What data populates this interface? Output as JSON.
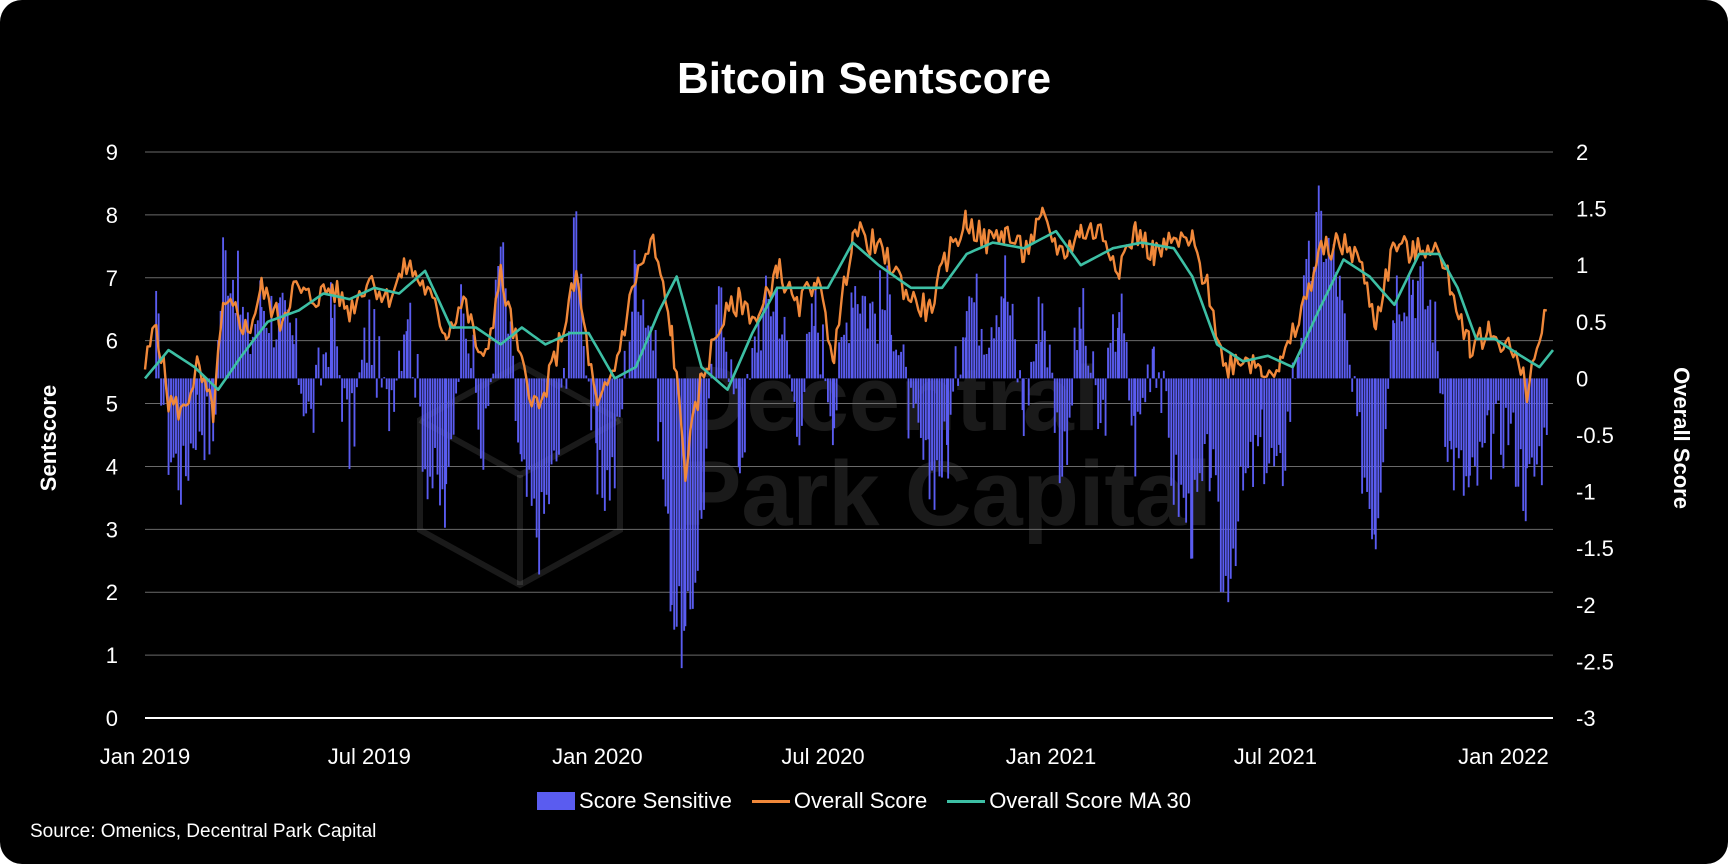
{
  "title": "Bitcoin Sentscore",
  "source": "Source: Omenics, Decentral Park Capital",
  "watermark": [
    "Decentral",
    "Park Capital"
  ],
  "colors": {
    "background": "#000000",
    "bars": "#5a5cf0",
    "overall": "#f0883a",
    "ma30": "#3dbfa4",
    "grid": "#6a6a6a",
    "text": "#ffffff"
  },
  "chart_data": {
    "type": "bar+line",
    "title": "Bitcoin Sentscore",
    "left_axis": {
      "label": "Sentscore",
      "range": [
        0,
        9
      ],
      "ticks": [
        "0",
        "1",
        "2",
        "3",
        "4",
        "5",
        "6",
        "7",
        "8",
        "9"
      ]
    },
    "right_axis": {
      "label": "Overall Score",
      "range": [
        -3,
        2
      ],
      "ticks": [
        "-3",
        "-2.5",
        "-2",
        "-1.5",
        "-1",
        "-0.5",
        "0",
        "0.5",
        "1",
        "1.5",
        "2"
      ]
    },
    "x_axis": {
      "range": [
        "2019-01-01",
        "2022-02-10"
      ],
      "ticks": [
        {
          "date": "2019-01-01",
          "label": "Jan 2019"
        },
        {
          "date": "2019-07-01",
          "label": "Jul 2019"
        },
        {
          "date": "2020-01-01",
          "label": "Jan 2020"
        },
        {
          "date": "2020-07-01",
          "label": "Jul 2020"
        },
        {
          "date": "2021-01-01",
          "label": "Jan 2021"
        },
        {
          "date": "2021-07-01",
          "label": "Jul 2021"
        },
        {
          "date": "2022-01-01",
          "label": "Jan 2022"
        }
      ]
    },
    "grid": true,
    "legend_position": "bottom",
    "bar_baseline_right_axis": 0,
    "series": [
      {
        "name": "Score Sensitive",
        "type": "bar",
        "axis": "right",
        "note_unit": "Overall Score axis",
        "points": [
          [
            "2019-01-10",
            0.5
          ],
          [
            "2019-01-20",
            -0.6
          ],
          [
            "2019-02-01",
            -0.9
          ],
          [
            "2019-02-12",
            -0.3
          ],
          [
            "2019-02-25",
            -0.5
          ],
          [
            "2019-03-05",
            1.1
          ],
          [
            "2019-03-15",
            0.9
          ],
          [
            "2019-03-25",
            0.3
          ],
          [
            "2019-04-05",
            0.7
          ],
          [
            "2019-04-20",
            0.5
          ],
          [
            "2019-05-01",
            0.3
          ],
          [
            "2019-05-15",
            -0.4
          ],
          [
            "2019-06-01",
            0.6
          ],
          [
            "2019-06-15",
            -0.6
          ],
          [
            "2019-07-01",
            0.5
          ],
          [
            "2019-07-15",
            -0.3
          ],
          [
            "2019-08-01",
            0.7
          ],
          [
            "2019-08-15",
            -0.7
          ],
          [
            "2019-09-01",
            -1.2
          ],
          [
            "2019-09-15",
            0.9
          ],
          [
            "2019-10-01",
            -0.8
          ],
          [
            "2019-10-15",
            1.2
          ],
          [
            "2019-11-01",
            -0.9
          ],
          [
            "2019-11-15",
            -1.4
          ],
          [
            "2019-12-01",
            -0.6
          ],
          [
            "2019-12-15",
            1.4
          ],
          [
            "2020-01-01",
            -1.0
          ],
          [
            "2020-01-15",
            -0.8
          ],
          [
            "2020-02-01",
            1.0
          ],
          [
            "2020-02-15",
            0.4
          ],
          [
            "2020-03-01",
            -1.9
          ],
          [
            "2020-03-12",
            -2.4
          ],
          [
            "2020-03-25",
            -1.2
          ],
          [
            "2020-04-10",
            0.9
          ],
          [
            "2020-04-25",
            -0.7
          ],
          [
            "2020-05-10",
            0.5
          ],
          [
            "2020-05-25",
            0.8
          ],
          [
            "2020-06-10",
            -0.4
          ],
          [
            "2020-06-25",
            0.6
          ],
          [
            "2020-07-10",
            -0.3
          ],
          [
            "2020-07-25",
            0.9
          ],
          [
            "2020-08-10",
            0.6
          ],
          [
            "2020-08-25",
            0.7
          ],
          [
            "2020-09-10",
            -0.4
          ],
          [
            "2020-09-25",
            -0.9
          ],
          [
            "2020-10-10",
            -0.6
          ],
          [
            "2020-10-25",
            0.8
          ],
          [
            "2020-11-10",
            0.5
          ],
          [
            "2020-11-25",
            0.9
          ],
          [
            "2020-12-10",
            -0.3
          ],
          [
            "2020-12-25",
            0.7
          ],
          [
            "2021-01-10",
            -0.8
          ],
          [
            "2021-01-25",
            0.6
          ],
          [
            "2021-02-10",
            -0.5
          ],
          [
            "2021-02-25",
            0.7
          ],
          [
            "2021-03-10",
            -0.6
          ],
          [
            "2021-03-25",
            0.4
          ],
          [
            "2021-04-10",
            -0.9
          ],
          [
            "2021-04-25",
            -1.3
          ],
          [
            "2021-05-10",
            -0.7
          ],
          [
            "2021-05-20",
            -1.9
          ],
          [
            "2021-06-05",
            -1.0
          ],
          [
            "2021-06-20",
            -0.6
          ],
          [
            "2021-07-05",
            -0.9
          ],
          [
            "2021-07-20",
            0.4
          ],
          [
            "2021-08-05",
            1.4
          ],
          [
            "2021-08-20",
            0.9
          ],
          [
            "2021-09-05",
            -0.5
          ],
          [
            "2021-09-20",
            -1.3
          ],
          [
            "2021-10-05",
            0.8
          ],
          [
            "2021-10-20",
            0.9
          ],
          [
            "2021-11-05",
            0.6
          ],
          [
            "2021-11-20",
            -0.7
          ],
          [
            "2021-12-05",
            -1.0
          ],
          [
            "2021-12-20",
            -0.6
          ],
          [
            "2022-01-05",
            -0.4
          ],
          [
            "2022-01-20",
            -1.0
          ],
          [
            "2022-02-05",
            -0.5
          ]
        ]
      },
      {
        "name": "Overall Score",
        "type": "line",
        "axis": "right",
        "points": [
          [
            "2019-01-01",
            0.1
          ],
          [
            "2019-01-10",
            0.5
          ],
          [
            "2019-01-20",
            -0.2
          ],
          [
            "2019-02-01",
            -0.3
          ],
          [
            "2019-02-12",
            0.1
          ],
          [
            "2019-02-25",
            -0.3
          ],
          [
            "2019-03-05",
            0.6
          ],
          [
            "2019-03-15",
            0.6
          ],
          [
            "2019-03-25",
            0.4
          ],
          [
            "2019-04-05",
            0.8
          ],
          [
            "2019-04-20",
            0.5
          ],
          [
            "2019-05-01",
            0.8
          ],
          [
            "2019-05-15",
            0.7
          ],
          [
            "2019-06-01",
            0.8
          ],
          [
            "2019-06-15",
            0.6
          ],
          [
            "2019-07-01",
            0.9
          ],
          [
            "2019-07-15",
            0.7
          ],
          [
            "2019-08-01",
            1.0
          ],
          [
            "2019-08-15",
            0.8
          ],
          [
            "2019-09-01",
            0.4
          ],
          [
            "2019-09-15",
            0.7
          ],
          [
            "2019-10-01",
            0.1
          ],
          [
            "2019-10-15",
            0.9
          ],
          [
            "2019-11-01",
            0.1
          ],
          [
            "2019-11-15",
            -0.3
          ],
          [
            "2019-12-01",
            0.3
          ],
          [
            "2019-12-15",
            0.9
          ],
          [
            "2020-01-01",
            -0.3
          ],
          [
            "2020-01-15",
            0.1
          ],
          [
            "2020-02-01",
            0.9
          ],
          [
            "2020-02-15",
            1.2
          ],
          [
            "2020-03-01",
            0.4
          ],
          [
            "2020-03-12",
            -0.8
          ],
          [
            "2020-03-25",
            0.0
          ],
          [
            "2020-04-10",
            0.5
          ],
          [
            "2020-04-25",
            0.7
          ],
          [
            "2020-05-10",
            0.5
          ],
          [
            "2020-05-25",
            1.0
          ],
          [
            "2020-06-10",
            0.6
          ],
          [
            "2020-06-25",
            0.9
          ],
          [
            "2020-07-10",
            0.2
          ],
          [
            "2020-07-25",
            1.3
          ],
          [
            "2020-08-10",
            1.2
          ],
          [
            "2020-08-25",
            1.0
          ],
          [
            "2020-09-10",
            0.7
          ],
          [
            "2020-09-25",
            0.6
          ],
          [
            "2020-10-10",
            1.1
          ],
          [
            "2020-10-25",
            1.4
          ],
          [
            "2020-11-10",
            1.2
          ],
          [
            "2020-11-25",
            1.3
          ],
          [
            "2020-12-10",
            1.1
          ],
          [
            "2020-12-25",
            1.4
          ],
          [
            "2021-01-10",
            1.1
          ],
          [
            "2021-01-25",
            1.3
          ],
          [
            "2021-02-10",
            1.3
          ],
          [
            "2021-02-25",
            1.0
          ],
          [
            "2021-03-10",
            1.3
          ],
          [
            "2021-03-25",
            1.1
          ],
          [
            "2021-04-10",
            1.2
          ],
          [
            "2021-04-25",
            1.2
          ],
          [
            "2021-05-10",
            0.7
          ],
          [
            "2021-05-20",
            0.1
          ],
          [
            "2021-06-05",
            0.2
          ],
          [
            "2021-06-20",
            0.1
          ],
          [
            "2021-07-05",
            0.1
          ],
          [
            "2021-07-20",
            0.5
          ],
          [
            "2021-08-05",
            1.1
          ],
          [
            "2021-08-20",
            1.2
          ],
          [
            "2021-09-05",
            1.1
          ],
          [
            "2021-09-20",
            0.5
          ],
          [
            "2021-10-05",
            1.2
          ],
          [
            "2021-10-20",
            1.1
          ],
          [
            "2021-11-05",
            1.2
          ],
          [
            "2021-11-20",
            0.8
          ],
          [
            "2021-12-05",
            0.3
          ],
          [
            "2021-12-20",
            0.4
          ],
          [
            "2022-01-05",
            0.3
          ],
          [
            "2022-01-20",
            -0.1
          ],
          [
            "2022-02-05",
            0.6
          ]
        ]
      },
      {
        "name": "Overall Score MA 30",
        "type": "line",
        "axis": "right",
        "points": [
          [
            "2019-01-01",
            0.0
          ],
          [
            "2019-01-20",
            0.25
          ],
          [
            "2019-02-10",
            0.1
          ],
          [
            "2019-03-01",
            -0.1
          ],
          [
            "2019-03-20",
            0.2
          ],
          [
            "2019-04-10",
            0.5
          ],
          [
            "2019-05-05",
            0.6
          ],
          [
            "2019-05-25",
            0.75
          ],
          [
            "2019-06-15",
            0.7
          ],
          [
            "2019-07-05",
            0.8
          ],
          [
            "2019-07-25",
            0.75
          ],
          [
            "2019-08-15",
            0.95
          ],
          [
            "2019-09-05",
            0.45
          ],
          [
            "2019-09-25",
            0.45
          ],
          [
            "2019-10-15",
            0.3
          ],
          [
            "2019-11-01",
            0.45
          ],
          [
            "2019-11-20",
            0.3
          ],
          [
            "2019-12-10",
            0.4
          ],
          [
            "2019-12-25",
            0.4
          ],
          [
            "2020-01-15",
            0.0
          ],
          [
            "2020-02-01",
            0.1
          ],
          [
            "2020-02-20",
            0.6
          ],
          [
            "2020-03-05",
            0.9
          ],
          [
            "2020-03-25",
            0.1
          ],
          [
            "2020-04-15",
            -0.1
          ],
          [
            "2020-05-05",
            0.4
          ],
          [
            "2020-05-25",
            0.8
          ],
          [
            "2020-06-15",
            0.8
          ],
          [
            "2020-07-05",
            0.8
          ],
          [
            "2020-07-25",
            1.2
          ],
          [
            "2020-08-15",
            1.0
          ],
          [
            "2020-09-10",
            0.8
          ],
          [
            "2020-10-05",
            0.8
          ],
          [
            "2020-10-25",
            1.1
          ],
          [
            "2020-11-15",
            1.2
          ],
          [
            "2020-12-10",
            1.15
          ],
          [
            "2021-01-05",
            1.3
          ],
          [
            "2021-01-25",
            1.0
          ],
          [
            "2021-02-20",
            1.15
          ],
          [
            "2021-03-15",
            1.2
          ],
          [
            "2021-04-10",
            1.15
          ],
          [
            "2021-04-25",
            0.9
          ],
          [
            "2021-05-15",
            0.3
          ],
          [
            "2021-06-05",
            0.15
          ],
          [
            "2021-06-25",
            0.2
          ],
          [
            "2021-07-15",
            0.1
          ],
          [
            "2021-08-05",
            0.6
          ],
          [
            "2021-08-25",
            1.05
          ],
          [
            "2021-09-15",
            0.9
          ],
          [
            "2021-10-05",
            0.65
          ],
          [
            "2021-10-25",
            1.1
          ],
          [
            "2021-11-10",
            1.1
          ],
          [
            "2021-11-25",
            0.8
          ],
          [
            "2021-12-10",
            0.35
          ],
          [
            "2021-12-25",
            0.35
          ],
          [
            "2022-01-15",
            0.2
          ],
          [
            "2022-01-30",
            0.1
          ],
          [
            "2022-02-10",
            0.25
          ]
        ]
      }
    ]
  },
  "legend": [
    {
      "label": "Score Sensitive",
      "kind": "bar"
    },
    {
      "label": "Overall Score",
      "kind": "line"
    },
    {
      "label": "Overall Score MA 30",
      "kind": "line"
    }
  ]
}
